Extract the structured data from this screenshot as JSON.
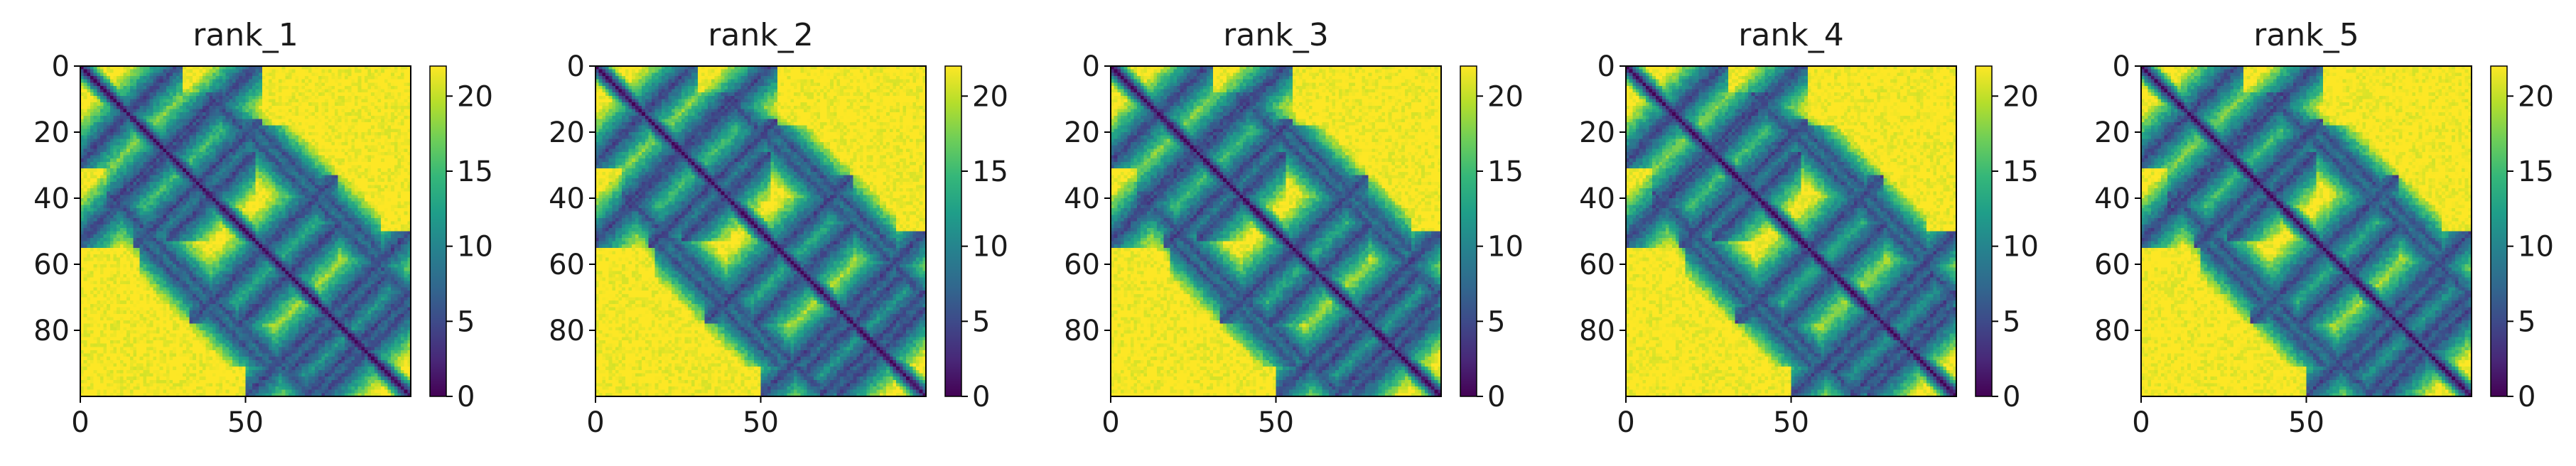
{
  "chart_data": [
    {
      "type": "heatmap",
      "title": "rank_1",
      "xlabel": "",
      "ylabel": "",
      "matrix_size": 100,
      "xlim": [
        0,
        99
      ],
      "ylim": [
        99,
        0
      ],
      "x_ticks": [
        0,
        50
      ],
      "y_ticks": [
        0,
        20,
        40,
        60,
        80
      ],
      "colorbar": {
        "cmap": "viridis",
        "range": [
          0,
          22
        ],
        "ticks": [
          0,
          5,
          10,
          15,
          20
        ]
      },
      "pattern": {
        "diagonal_value": 0,
        "background_value": 22,
        "contacts": [
          [
            0,
            28
          ],
          [
            28,
            50
          ],
          [
            50,
            75
          ],
          [
            75,
            97
          ],
          [
            0,
            52
          ],
          [
            18,
            52
          ],
          [
            35,
            75
          ],
          [
            52,
            97
          ],
          [
            70,
            97
          ],
          [
            10,
            40
          ],
          [
            40,
            70
          ],
          [
            65,
            90
          ]
        ]
      }
    },
    {
      "type": "heatmap",
      "title": "rank_2",
      "xlabel": "",
      "ylabel": "",
      "matrix_size": 100,
      "xlim": [
        0,
        99
      ],
      "ylim": [
        99,
        0
      ],
      "x_ticks": [
        0,
        50
      ],
      "y_ticks": [
        0,
        20,
        40,
        60,
        80
      ],
      "colorbar": {
        "cmap": "viridis",
        "range": [
          0,
          22
        ],
        "ticks": [
          0,
          5,
          10,
          15,
          20
        ]
      },
      "pattern": {
        "diagonal_value": 0,
        "background_value": 22,
        "contacts": [
          [
            0,
            28
          ],
          [
            28,
            50
          ],
          [
            50,
            75
          ],
          [
            75,
            97
          ],
          [
            0,
            52
          ],
          [
            18,
            52
          ],
          [
            35,
            75
          ],
          [
            52,
            97
          ],
          [
            70,
            97
          ],
          [
            10,
            40
          ],
          [
            40,
            70
          ],
          [
            65,
            90
          ]
        ]
      }
    },
    {
      "type": "heatmap",
      "title": "rank_3",
      "xlabel": "",
      "ylabel": "",
      "matrix_size": 100,
      "xlim": [
        0,
        99
      ],
      "ylim": [
        99,
        0
      ],
      "x_ticks": [
        0,
        50
      ],
      "y_ticks": [
        0,
        20,
        40,
        60,
        80
      ],
      "colorbar": {
        "cmap": "viridis",
        "range": [
          0,
          22
        ],
        "ticks": [
          0,
          5,
          10,
          15,
          20
        ]
      },
      "pattern": {
        "diagonal_value": 0,
        "background_value": 22,
        "contacts": [
          [
            0,
            28
          ],
          [
            28,
            50
          ],
          [
            50,
            75
          ],
          [
            75,
            97
          ],
          [
            0,
            52
          ],
          [
            18,
            52
          ],
          [
            35,
            75
          ],
          [
            52,
            97
          ],
          [
            70,
            97
          ],
          [
            10,
            40
          ],
          [
            40,
            70
          ],
          [
            65,
            90
          ]
        ]
      }
    },
    {
      "type": "heatmap",
      "title": "rank_4",
      "xlabel": "",
      "ylabel": "",
      "matrix_size": 100,
      "xlim": [
        0,
        99
      ],
      "ylim": [
        99,
        0
      ],
      "x_ticks": [
        0,
        50
      ],
      "y_ticks": [
        0,
        20,
        40,
        60,
        80
      ],
      "colorbar": {
        "cmap": "viridis",
        "range": [
          0,
          22
        ],
        "ticks": [
          0,
          5,
          10,
          15,
          20
        ]
      },
      "pattern": {
        "diagonal_value": 0,
        "background_value": 22,
        "contacts": [
          [
            0,
            28
          ],
          [
            28,
            50
          ],
          [
            50,
            75
          ],
          [
            75,
            97
          ],
          [
            0,
            52
          ],
          [
            18,
            52
          ],
          [
            35,
            75
          ],
          [
            52,
            97
          ],
          [
            70,
            97
          ],
          [
            10,
            40
          ],
          [
            40,
            70
          ],
          [
            65,
            90
          ]
        ]
      }
    },
    {
      "type": "heatmap",
      "title": "rank_5",
      "xlabel": "",
      "ylabel": "",
      "matrix_size": 100,
      "xlim": [
        0,
        99
      ],
      "ylim": [
        99,
        0
      ],
      "x_ticks": [
        0,
        50
      ],
      "y_ticks": [
        0,
        20,
        40,
        60,
        80
      ],
      "colorbar": {
        "cmap": "viridis",
        "range": [
          0,
          22
        ],
        "ticks": [
          0,
          5,
          10,
          15,
          20
        ]
      },
      "pattern": {
        "diagonal_value": 0,
        "background_value": 22,
        "contacts": [
          [
            0,
            28
          ],
          [
            28,
            50
          ],
          [
            50,
            75
          ],
          [
            75,
            97
          ],
          [
            0,
            52
          ],
          [
            18,
            52
          ],
          [
            35,
            75
          ],
          [
            52,
            97
          ],
          [
            70,
            97
          ],
          [
            10,
            40
          ],
          [
            40,
            70
          ],
          [
            65,
            90
          ]
        ]
      }
    }
  ],
  "colors": {
    "viridis_stops": [
      "#440154",
      "#482878",
      "#3e4989",
      "#31688e",
      "#26828e",
      "#1f9e89",
      "#35b779",
      "#6ece58",
      "#b5de2b",
      "#fde725"
    ],
    "axis": "#000000",
    "text": "#1a1a1a",
    "background": "#ffffff"
  }
}
